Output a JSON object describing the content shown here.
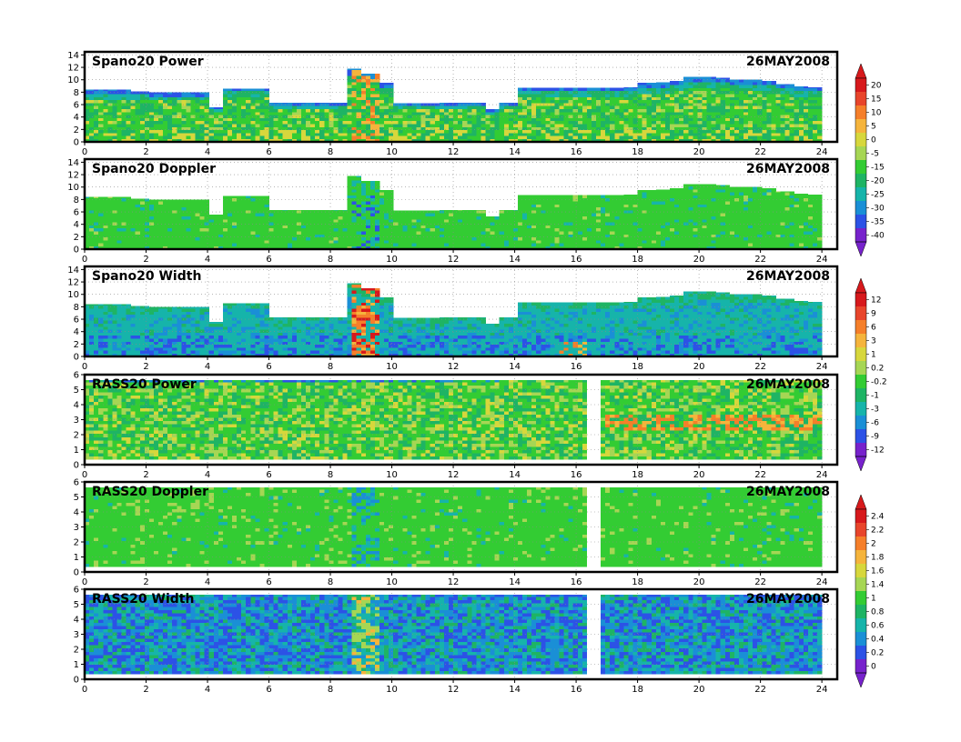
{
  "chart_data": [
    {
      "type": "heatmap",
      "title": "Spano20  Power",
      "date": "26MAY2008",
      "xlim": [
        0,
        24.5
      ],
      "ylim": [
        0,
        14.5
      ],
      "x_ticks": [
        "0",
        "2",
        "4",
        "6",
        "8",
        "10",
        "12",
        "14",
        "16",
        "18",
        "20",
        "22",
        "24"
      ],
      "y_ticks": [
        "0",
        "2",
        "4",
        "6",
        "8",
        "10",
        "12",
        "14"
      ],
      "grid": true,
      "top_profile": [
        8.4,
        8.4,
        8.4,
        8.1,
        8.0,
        8.0,
        8.0,
        8.0,
        5.6,
        8.6,
        8.6,
        8.6,
        6.3,
        6.3,
        6.3,
        6.3,
        6.3,
        11.8,
        11.0,
        9.5,
        6.2,
        6.2,
        6.2,
        6.3,
        6.3,
        6.3,
        5.3,
        6.3,
        8.7,
        8.7,
        8.7,
        8.7,
        8.7,
        8.7,
        8.7,
        8.8,
        9.5,
        9.6,
        9.8,
        10.5,
        10.5,
        10.3,
        10.0,
        10.0,
        9.8,
        9.3,
        8.9,
        8.8
      ],
      "colorbar": {
        "labels": [
          "20",
          "15",
          "10",
          "5",
          "0",
          "-5",
          "-15",
          "-20",
          "-25",
          "-30",
          "-35",
          "-40"
        ],
        "colors": [
          "#d7191c",
          "#e8452b",
          "#f57f2a",
          "#f5b43c",
          "#d7d73c",
          "#a6d654",
          "#33cc33",
          "#1eb464",
          "#16b4aa",
          "#1a8fd6",
          "#2c52e6",
          "#7722cc"
        ]
      }
    },
    {
      "type": "heatmap",
      "title": "Spano20  Doppler",
      "date": "26MAY2008",
      "xlim": [
        0,
        24.5
      ],
      "ylim": [
        0,
        14.5
      ],
      "x_ticks": [
        "0",
        "2",
        "4",
        "6",
        "8",
        "10",
        "12",
        "14",
        "16",
        "18",
        "20",
        "22",
        "24"
      ],
      "y_ticks": [
        "0",
        "2",
        "4",
        "6",
        "8",
        "10",
        "12",
        "14"
      ],
      "grid": true,
      "top_profile": [
        8.4,
        8.4,
        8.4,
        8.1,
        8.0,
        8.0,
        8.0,
        8.0,
        5.6,
        8.6,
        8.6,
        8.6,
        6.3,
        6.3,
        6.3,
        6.3,
        6.3,
        11.8,
        11.0,
        9.5,
        6.2,
        6.2,
        6.2,
        6.3,
        6.3,
        6.3,
        5.3,
        6.3,
        8.7,
        8.7,
        8.7,
        8.7,
        8.7,
        8.7,
        8.7,
        8.8,
        9.5,
        9.6,
        9.8,
        10.5,
        10.5,
        10.3,
        10.0,
        10.0,
        9.8,
        9.3,
        8.9,
        8.8
      ]
    },
    {
      "type": "heatmap",
      "title": "Spano20  Width",
      "date": "26MAY2008",
      "xlim": [
        0,
        24.5
      ],
      "ylim": [
        0,
        14.5
      ],
      "x_ticks": [
        "0",
        "2",
        "4",
        "6",
        "8",
        "10",
        "12",
        "14",
        "16",
        "18",
        "20",
        "22",
        "24"
      ],
      "y_ticks": [
        "0",
        "2",
        "4",
        "6",
        "8",
        "10",
        "12",
        "14"
      ],
      "grid": true,
      "top_profile": [
        8.4,
        8.4,
        8.4,
        8.1,
        8.0,
        8.0,
        8.0,
        8.0,
        5.6,
        8.6,
        8.6,
        8.6,
        6.3,
        6.3,
        6.3,
        6.3,
        6.3,
        11.8,
        11.0,
        9.5,
        6.2,
        6.2,
        6.2,
        6.3,
        6.3,
        6.3,
        5.3,
        6.3,
        8.7,
        8.7,
        8.7,
        8.7,
        8.7,
        8.7,
        8.7,
        8.8,
        9.5,
        9.6,
        9.8,
        10.5,
        10.5,
        10.3,
        10.0,
        10.0,
        9.8,
        9.3,
        8.9,
        8.8
      ],
      "colorbar": {
        "labels": [
          "12",
          "9",
          "6",
          "3",
          "1",
          "0.2",
          "-0.2",
          "-1",
          "-3",
          "-6",
          "-9",
          "-12"
        ],
        "colors": [
          "#d7191c",
          "#e8452b",
          "#f57f2a",
          "#f5b43c",
          "#d7d73c",
          "#a6d654",
          "#33cc33",
          "#1eb464",
          "#16b4aa",
          "#1a8fd6",
          "#2c52e6",
          "#7722cc"
        ]
      }
    },
    {
      "type": "heatmap",
      "title": "RASS20  Power",
      "date": "26MAY2008",
      "xlim": [
        0,
        24.5
      ],
      "ylim": [
        0,
        6
      ],
      "x_ticks": [
        "0",
        "2",
        "4",
        "6",
        "8",
        "10",
        "12",
        "14",
        "16",
        "18",
        "20",
        "22",
        "24"
      ],
      "y_ticks": [
        "0",
        "1",
        "2",
        "3",
        "4",
        "5",
        "6"
      ],
      "grid": true,
      "data_range": [
        0,
        24
      ],
      "gap": [
        16.3,
        16.8
      ]
    },
    {
      "type": "heatmap",
      "title": "RASS20  Doppler",
      "date": "26MAY2008",
      "xlim": [
        0,
        24.5
      ],
      "ylim": [
        0,
        6
      ],
      "x_ticks": [
        "0",
        "2",
        "4",
        "6",
        "8",
        "10",
        "12",
        "14",
        "16",
        "18",
        "20",
        "22",
        "24"
      ],
      "y_ticks": [
        "0",
        "1",
        "2",
        "3",
        "4",
        "5",
        "6"
      ],
      "grid": true,
      "data_range": [
        0,
        24
      ],
      "gap": [
        16.3,
        16.8
      ],
      "colorbar": {
        "labels": [
          "2.4",
          "2.2",
          "2",
          "1.8",
          "1.6",
          "1.4",
          "1",
          "0.8",
          "0.6",
          "0.4",
          "0.2",
          "0"
        ],
        "colors": [
          "#d7191c",
          "#e8452b",
          "#f57f2a",
          "#f5b43c",
          "#d7d73c",
          "#a6d654",
          "#33cc33",
          "#1eb464",
          "#16b4aa",
          "#1a8fd6",
          "#2c52e6",
          "#7722cc"
        ]
      }
    },
    {
      "type": "heatmap",
      "title": "RASS20  Width",
      "date": "26MAY2008",
      "xlim": [
        0,
        24.5
      ],
      "ylim": [
        0,
        6
      ],
      "x_ticks": [
        "0",
        "2",
        "4",
        "6",
        "8",
        "10",
        "12",
        "14",
        "16",
        "18",
        "20",
        "22",
        "24"
      ],
      "y_ticks": [
        "0",
        "1",
        "2",
        "3",
        "4",
        "5",
        "6"
      ],
      "grid": true,
      "data_range": [
        0,
        24
      ],
      "gap": [
        16.3,
        16.8
      ]
    }
  ]
}
